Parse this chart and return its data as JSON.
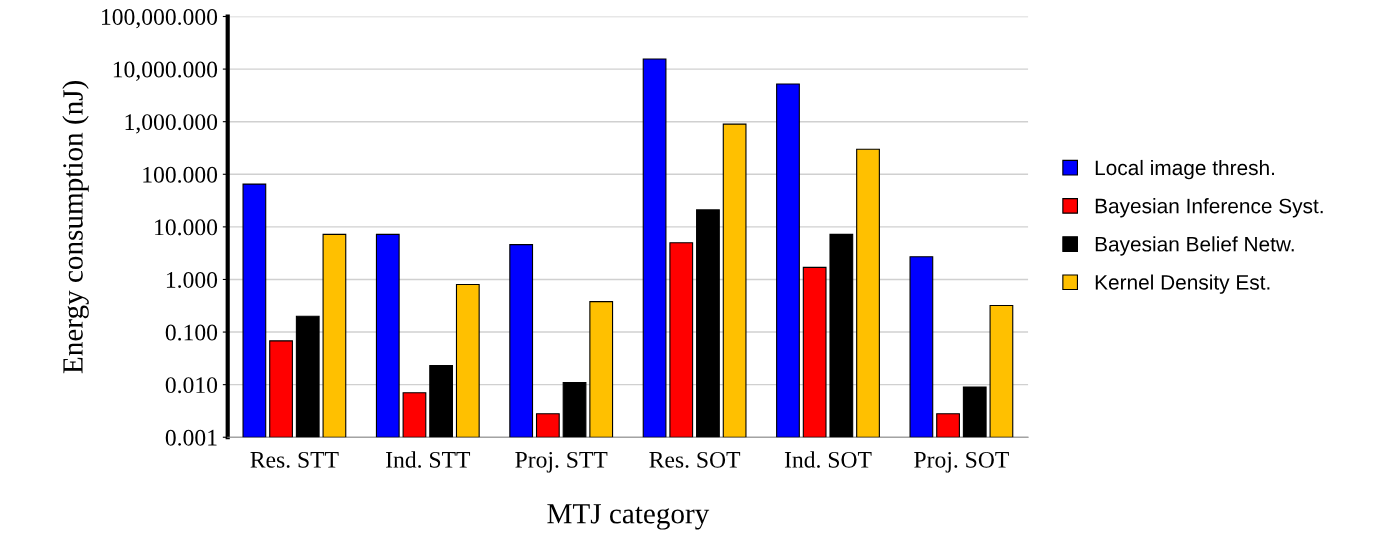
{
  "chart_data": {
    "type": "bar",
    "xlabel": "MTJ category",
    "ylabel": "Energy consumption (nJ)",
    "categories": [
      "Res. STT",
      "Ind. STT",
      "Proj. STT",
      "Res. SOT",
      "Ind. SOT",
      "Proj. SOT"
    ],
    "series": [
      {
        "name": "Local image thresh.",
        "color": "#0000ff",
        "values": [
          65,
          7.2,
          4.6,
          15600,
          5200,
          2.7
        ]
      },
      {
        "name": "Bayesian Inference Syst.",
        "color": "#ff0000",
        "values": [
          0.068,
          0.007,
          0.0028,
          5,
          1.7,
          0.0028
        ]
      },
      {
        "name": "Bayesian Belief Netw.",
        "color": "#000000",
        "values": [
          0.2,
          0.023,
          0.011,
          21,
          7.2,
          0.009
        ]
      },
      {
        "name": "Kernel Density Est.",
        "color": "#ffc000",
        "values": [
          7.2,
          0.8,
          0.38,
          900,
          300,
          0.32
        ]
      }
    ],
    "log": "y",
    "ylim": [
      0.001,
      100000
    ],
    "yticks": [
      {
        "value": 0.001,
        "label": "0.001"
      },
      {
        "value": 0.01,
        "label": "0.010"
      },
      {
        "value": 0.1,
        "label": "0.100"
      },
      {
        "value": 1,
        "label": "1.000"
      },
      {
        "value": 10,
        "label": "10.000"
      },
      {
        "value": 100,
        "label": "100.000"
      },
      {
        "value": 1000,
        "label": "1,000.000"
      },
      {
        "value": 10000,
        "label": "10,000.000"
      },
      {
        "value": 100000,
        "label": "100,000.000"
      }
    ],
    "grid": "y",
    "legend": "right"
  }
}
